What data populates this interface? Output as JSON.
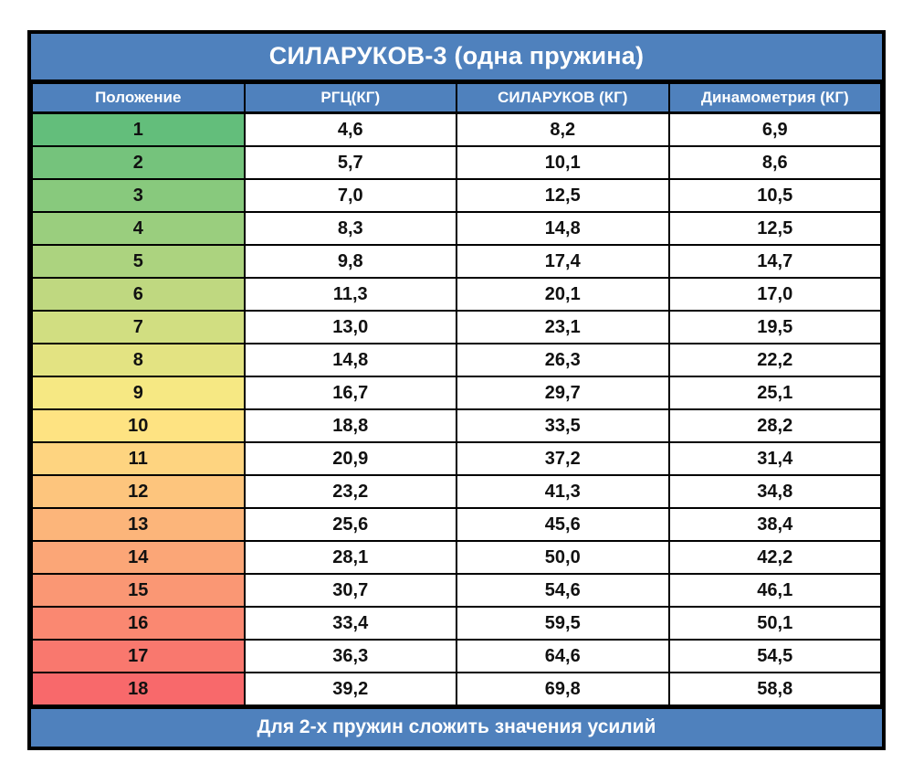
{
  "colors": {
    "header_bg": "#4f81bd",
    "header_text": "#ffffff",
    "border": "#000000",
    "row_scale": [
      "#63BE7B",
      "#75C37C",
      "#88C97D",
      "#9ACE7E",
      "#ACD37F",
      "#BFD880",
      "#D1DE81",
      "#E3E382",
      "#F6E883",
      "#FEE382",
      "#FED480",
      "#FDC57D",
      "#FCB57A",
      "#FBA677",
      "#FA9774",
      "#FA8871",
      "#F9786E",
      "#F8696B"
    ]
  },
  "chart_data": {
    "type": "table",
    "title": "СИЛАРУКОВ-3 (одна пружина)",
    "columns": [
      "Положение",
      "РГЦ(КГ)",
      "СИЛАРУКОВ (КГ)",
      "Динамометрия (КГ)"
    ],
    "rows": [
      {
        "pos": "1",
        "rgc": "4,6",
        "silarukov": "8,2",
        "dyno": "6,9"
      },
      {
        "pos": "2",
        "rgc": "5,7",
        "silarukov": "10,1",
        "dyno": "8,6"
      },
      {
        "pos": "3",
        "rgc": "7,0",
        "silarukov": "12,5",
        "dyno": "10,5"
      },
      {
        "pos": "4",
        "rgc": "8,3",
        "silarukov": "14,8",
        "dyno": "12,5"
      },
      {
        "pos": "5",
        "rgc": "9,8",
        "silarukov": "17,4",
        "dyno": "14,7"
      },
      {
        "pos": "6",
        "rgc": "11,3",
        "silarukov": "20,1",
        "dyno": "17,0"
      },
      {
        "pos": "7",
        "rgc": "13,0",
        "silarukov": "23,1",
        "dyno": "19,5"
      },
      {
        "pos": "8",
        "rgc": "14,8",
        "silarukov": "26,3",
        "dyno": "22,2"
      },
      {
        "pos": "9",
        "rgc": "16,7",
        "silarukov": "29,7",
        "dyno": "25,1"
      },
      {
        "pos": "10",
        "rgc": "18,8",
        "silarukov": "33,5",
        "dyno": "28,2"
      },
      {
        "pos": "11",
        "rgc": "20,9",
        "silarukov": "37,2",
        "dyno": "31,4"
      },
      {
        "pos": "12",
        "rgc": "23,2",
        "silarukov": "41,3",
        "dyno": "34,8"
      },
      {
        "pos": "13",
        "rgc": "25,6",
        "silarukov": "45,6",
        "dyno": "38,4"
      },
      {
        "pos": "14",
        "rgc": "28,1",
        "silarukov": "50,0",
        "dyno": "42,2"
      },
      {
        "pos": "15",
        "rgc": "30,7",
        "silarukov": "54,6",
        "dyno": "46,1"
      },
      {
        "pos": "16",
        "rgc": "33,4",
        "silarukov": "59,5",
        "dyno": "50,1"
      },
      {
        "pos": "17",
        "rgc": "36,3",
        "silarukov": "64,6",
        "dyno": "54,5"
      },
      {
        "pos": "18",
        "rgc": "39,2",
        "silarukov": "69,8",
        "dyno": "58,8"
      }
    ],
    "footer": "Для 2-х пружин сложить значения усилий"
  }
}
